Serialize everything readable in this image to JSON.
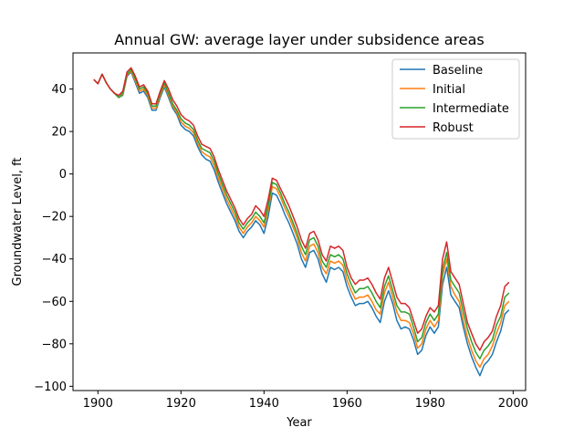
{
  "chart_data": {
    "type": "line",
    "title": "Annual GW: average layer under subsidence areas",
    "xlabel": "Year",
    "ylabel": "Groundwater Level, ft",
    "xlim": [
      1894,
      2003
    ],
    "ylim": [
      -102,
      57
    ],
    "xticks": [
      1900,
      1920,
      1940,
      1960,
      1980,
      2000
    ],
    "yticks": [
      -100,
      -80,
      -60,
      -40,
      -20,
      0,
      20,
      40
    ],
    "grid": false,
    "legend_position": "upper right",
    "x": [
      1899,
      1900,
      1901,
      1902,
      1903,
      1904,
      1905,
      1906,
      1907,
      1908,
      1909,
      1910,
      1911,
      1912,
      1913,
      1914,
      1915,
      1916,
      1917,
      1918,
      1919,
      1920,
      1921,
      1922,
      1923,
      1924,
      1925,
      1926,
      1927,
      1928,
      1929,
      1930,
      1931,
      1932,
      1933,
      1934,
      1935,
      1936,
      1937,
      1938,
      1939,
      1940,
      1941,
      1942,
      1943,
      1944,
      1945,
      1946,
      1947,
      1948,
      1949,
      1950,
      1951,
      1952,
      1953,
      1954,
      1955,
      1956,
      1957,
      1958,
      1959,
      1960,
      1961,
      1962,
      1963,
      1964,
      1965,
      1966,
      1967,
      1968,
      1969,
      1970,
      1971,
      1972,
      1973,
      1974,
      1975,
      1976,
      1977,
      1978,
      1979,
      1980,
      1981,
      1982,
      1983,
      1984,
      1985,
      1986,
      1987,
      1988,
      1989,
      1990,
      1991,
      1992,
      1993,
      1994,
      1995,
      1996,
      1997,
      1998,
      1999
    ],
    "series": [
      {
        "name": "Baseline",
        "color": "#1f77b4",
        "values": [
          44.5,
          42.5,
          47,
          43,
          40,
          38,
          36,
          37,
          46,
          48,
          43,
          38,
          39,
          36,
          30,
          30,
          36,
          41,
          36,
          31,
          28,
          23,
          21,
          20,
          18,
          13,
          9,
          7,
          6,
          2,
          -4,
          -9,
          -14,
          -18,
          -22,
          -27,
          -30,
          -27,
          -25,
          -22,
          -24,
          -28,
          -20,
          -9,
          -10,
          -14,
          -19,
          -23,
          -28,
          -33,
          -40,
          -44,
          -37,
          -36,
          -40,
          -47,
          -51,
          -44,
          -45,
          -44,
          -46,
          -53,
          -58,
          -62,
          -61,
          -61,
          -60,
          -63,
          -67,
          -70,
          -60,
          -55,
          -61,
          -69,
          -73,
          -72,
          -73,
          -78,
          -85,
          -83,
          -76,
          -72,
          -75,
          -72,
          -52,
          -44,
          -57,
          -60,
          -63,
          -72,
          -80,
          -86,
          -91,
          -95,
          -90,
          -88,
          -85,
          -79,
          -74,
          -66,
          -64
        ]
      },
      {
        "name": "Initial",
        "color": "#ff7f0e",
        "values": [
          44.5,
          42.5,
          47,
          43,
          40,
          38,
          36,
          37.5,
          46.5,
          48.5,
          44,
          39,
          40,
          37,
          31,
          31,
          37,
          42,
          37,
          32,
          29,
          24.5,
          22.5,
          21.5,
          19.5,
          14.5,
          10.5,
          9,
          8,
          4,
          -2,
          -7,
          -12,
          -16,
          -20,
          -25,
          -28,
          -25,
          -23,
          -20,
          -22,
          -25,
          -17,
          -6,
          -7,
          -11,
          -16,
          -20,
          -25,
          -30,
          -37,
          -41,
          -34,
          -33,
          -37,
          -44,
          -47,
          -41,
          -42,
          -41,
          -43,
          -50,
          -55,
          -59,
          -58,
          -58,
          -57,
          -60,
          -64,
          -66,
          -56,
          -51,
          -58,
          -65,
          -69,
          -69,
          -70,
          -75,
          -82,
          -80,
          -73,
          -69,
          -72,
          -69,
          -48,
          -40,
          -53,
          -57,
          -60,
          -69,
          -77,
          -83,
          -88,
          -91,
          -87,
          -85,
          -81,
          -75,
          -70,
          -62,
          -60
        ]
      },
      {
        "name": "Intermediate",
        "color": "#2ca02c",
        "values": [
          44.5,
          42.5,
          47,
          43,
          40,
          38,
          36,
          38,
          47,
          49,
          45,
          40,
          41,
          38,
          32,
          32,
          38,
          43,
          38,
          33,
          30,
          26,
          24,
          23,
          21,
          16,
          12,
          11,
          10,
          6,
          0,
          -5,
          -10,
          -14,
          -18,
          -23,
          -26,
          -23,
          -21,
          -18,
          -20,
          -23,
          -15,
          -4,
          -5,
          -9,
          -14,
          -18,
          -23,
          -28,
          -34,
          -38,
          -31,
          -30,
          -34,
          -41,
          -44,
          -38,
          -39,
          -38,
          -40,
          -47,
          -52,
          -56,
          -54,
          -54,
          -53,
          -56,
          -60,
          -63,
          -53,
          -48,
          -55,
          -62,
          -65,
          -65,
          -66,
          -72,
          -79,
          -77,
          -70,
          -66,
          -69,
          -66,
          -45,
          -37,
          -50,
          -53,
          -56,
          -65,
          -73,
          -79,
          -84,
          -87,
          -83,
          -81,
          -78,
          -71,
          -67,
          -58,
          -56
        ]
      },
      {
        "name": "Robust",
        "color": "#d62728",
        "values": [
          44.5,
          42.5,
          47,
          43,
          40,
          38,
          37,
          39,
          48,
          50,
          46,
          41,
          42,
          39,
          33,
          33,
          39,
          44,
          40,
          35,
          32,
          28,
          26,
          25,
          23,
          18,
          14,
          13,
          12,
          8,
          2,
          -3,
          -8,
          -12,
          -16,
          -21,
          -24,
          -21,
          -19,
          -15,
          -17,
          -20,
          -12,
          -2,
          -3,
          -7,
          -11,
          -15,
          -20,
          -25,
          -31,
          -35,
          -28,
          -27,
          -31,
          -38,
          -41,
          -34,
          -35,
          -34,
          -36,
          -44,
          -49,
          -52,
          -50,
          -50,
          -49,
          -52,
          -56,
          -59,
          -49,
          -44,
          -51,
          -58,
          -61,
          -61,
          -63,
          -69,
          -75,
          -73,
          -67,
          -63,
          -65,
          -62,
          -40,
          -32,
          -46,
          -49,
          -52,
          -61,
          -70,
          -75,
          -80,
          -83,
          -79,
          -77,
          -74,
          -67,
          -62,
          -53,
          -51
        ]
      }
    ]
  }
}
